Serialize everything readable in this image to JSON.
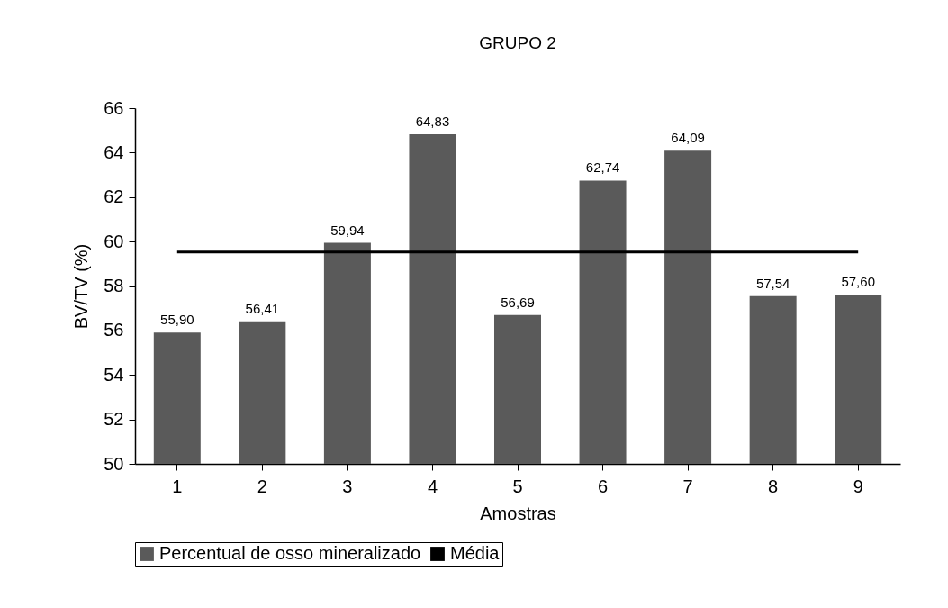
{
  "chart_data": {
    "type": "bar",
    "title": "GRUPO 2",
    "xlabel": "Amostras",
    "ylabel": "BV/TV (%)",
    "categories": [
      "1",
      "2",
      "3",
      "4",
      "5",
      "6",
      "7",
      "8",
      "9"
    ],
    "series": [
      {
        "name": "Percentual de osso mineralizado",
        "color": "#5a5a5a",
        "values": [
          55.9,
          56.41,
          59.94,
          64.83,
          56.69,
          62.74,
          64.09,
          57.54,
          57.6
        ],
        "value_labels": [
          "55,90",
          "56,41",
          "59,94",
          "64,83",
          "56,69",
          "62,74",
          "64,09",
          "57,54",
          "57,60"
        ]
      },
      {
        "name": "Média",
        "type": "line",
        "color": "#000000",
        "marker": "none",
        "values": [
          59.53,
          59.53,
          59.53,
          59.53,
          59.53,
          59.53,
          59.53,
          59.53,
          59.53
        ]
      }
    ],
    "ylim": [
      50,
      66
    ],
    "yticks": [
      50,
      52,
      54,
      56,
      58,
      60,
      62,
      64,
      66
    ],
    "grid": false,
    "legend": "bottom"
  }
}
